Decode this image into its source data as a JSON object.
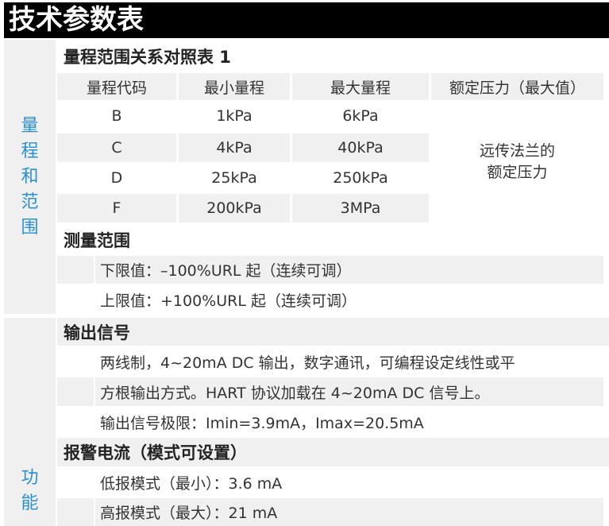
{
  "title": "技术参数表",
  "sections": [
    {
      "label": "量程和范围"
    },
    {
      "label": "功能"
    }
  ],
  "range_table": {
    "heading": "量程范围关系对照表 1",
    "headers": [
      "量程代码",
      "最小量程",
      "最大量程",
      "额定压力（最大值）"
    ],
    "rows": [
      [
        "B",
        "1kPa",
        "6kPa"
      ],
      [
        "C",
        "4kPa",
        "40kPa"
      ],
      [
        "D",
        "25kPa",
        "250kPa"
      ],
      [
        "F",
        "200kPa",
        "3MPa"
      ]
    ],
    "pressure_note_line1": "远传法兰的",
    "pressure_note_line2": "额定压力"
  },
  "measure_range": {
    "heading": "测量范围",
    "lines": [
      "下限值：–100%URL 起（连续可调）",
      "上限值：+100%URL 起（连续可调）"
    ]
  },
  "output_signal": {
    "heading": "输出信号",
    "lines": [
      "两线制，4~20mA DC 输出，数字通讯，可编程设定线性或平",
      "方根输出方式。HART 协议加载在 4~20mA DC 信号上。",
      "输出信号极限：Imin=3.9mA，Imax=20.5mA"
    ]
  },
  "alarm_current": {
    "heading": "报警电流（模式可设置）",
    "lines": [
      "低报模式（最小）：3.6 mA",
      "高报模式（最大）：21 mA"
    ]
  }
}
